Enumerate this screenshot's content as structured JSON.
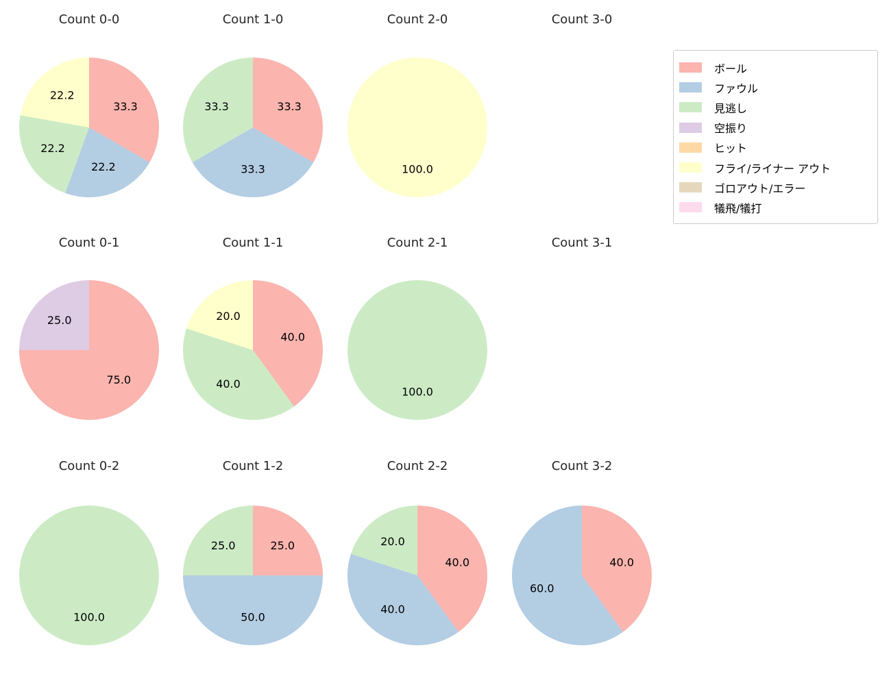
{
  "page": {
    "background": "#ffffff"
  },
  "legend": {
    "items": [
      {
        "label": "ボール",
        "color": "#fbb4ae"
      },
      {
        "label": "ファウル",
        "color": "#b3cde3"
      },
      {
        "label": "見逃し",
        "color": "#ccebc5"
      },
      {
        "label": "空振り",
        "color": "#decbe4"
      },
      {
        "label": "ヒット",
        "color": "#fed9a6"
      },
      {
        "label": "フライ/ライナー アウト",
        "color": "#ffffcc"
      },
      {
        "label": "ゴロアウト/エラー",
        "color": "#e5d8bd"
      },
      {
        "label": "犠飛/犠打",
        "color": "#fddaec"
      }
    ]
  },
  "chart_data": [
    {
      "type": "pie",
      "title": "Count 0-0",
      "start_angle_deg": 0,
      "direction": "clockwise-from-top",
      "slices": [
        {
          "category": "ボール",
          "value": 33.3,
          "label": "33.3"
        },
        {
          "category": "ファウル",
          "value": 22.2,
          "label": "22.2"
        },
        {
          "category": "見逃し",
          "value": 22.2,
          "label": "22.2"
        },
        {
          "category": "フライ/ライナー アウト",
          "value": 22.2,
          "label": "22.2"
        }
      ]
    },
    {
      "type": "pie",
      "title": "Count 1-0",
      "start_angle_deg": 0,
      "direction": "clockwise-from-top",
      "slices": [
        {
          "category": "ボール",
          "value": 33.3,
          "label": "33.3"
        },
        {
          "category": "ファウル",
          "value": 33.3,
          "label": "33.3"
        },
        {
          "category": "見逃し",
          "value": 33.3,
          "label": "33.3"
        }
      ]
    },
    {
      "type": "pie",
      "title": "Count 2-0",
      "start_angle_deg": 0,
      "direction": "clockwise-from-top",
      "slices": [
        {
          "category": "フライ/ライナー アウト",
          "value": 100.0,
          "label": "100.0"
        }
      ]
    },
    {
      "type": "pie",
      "title": "Count 3-0",
      "start_angle_deg": 0,
      "direction": "clockwise-from-top",
      "slices": []
    },
    {
      "type": "pie",
      "title": "Count 0-1",
      "start_angle_deg": 0,
      "direction": "clockwise-from-top",
      "slices": [
        {
          "category": "ボール",
          "value": 75.0,
          "label": "75.0"
        },
        {
          "category": "空振り",
          "value": 25.0,
          "label": "25.0"
        }
      ]
    },
    {
      "type": "pie",
      "title": "Count 1-1",
      "start_angle_deg": 0,
      "direction": "clockwise-from-top",
      "slices": [
        {
          "category": "ボール",
          "value": 40.0,
          "label": "40.0"
        },
        {
          "category": "見逃し",
          "value": 40.0,
          "label": "40.0"
        },
        {
          "category": "フライ/ライナー アウト",
          "value": 20.0,
          "label": "20.0"
        }
      ]
    },
    {
      "type": "pie",
      "title": "Count 2-1",
      "start_angle_deg": 0,
      "direction": "clockwise-from-top",
      "slices": [
        {
          "category": "見逃し",
          "value": 100.0,
          "label": "100.0"
        }
      ]
    },
    {
      "type": "pie",
      "title": "Count 3-1",
      "start_angle_deg": 0,
      "direction": "clockwise-from-top",
      "slices": []
    },
    {
      "type": "pie",
      "title": "Count 0-2",
      "start_angle_deg": 0,
      "direction": "clockwise-from-top",
      "slices": [
        {
          "category": "見逃し",
          "value": 100.0,
          "label": "100.0"
        }
      ]
    },
    {
      "type": "pie",
      "title": "Count 1-2",
      "start_angle_deg": 0,
      "direction": "clockwise-from-top",
      "slices": [
        {
          "category": "ボール",
          "value": 25.0,
          "label": "25.0"
        },
        {
          "category": "ファウル",
          "value": 50.0,
          "label": "50.0"
        },
        {
          "category": "見逃し",
          "value": 25.0,
          "label": "25.0"
        }
      ]
    },
    {
      "type": "pie",
      "title": "Count 2-2",
      "start_angle_deg": 0,
      "direction": "clockwise-from-top",
      "slices": [
        {
          "category": "ボール",
          "value": 40.0,
          "label": "40.0"
        },
        {
          "category": "ファウル",
          "value": 40.0,
          "label": "40.0"
        },
        {
          "category": "見逃し",
          "value": 20.0,
          "label": "20.0"
        }
      ]
    },
    {
      "type": "pie",
      "title": "Count 3-2",
      "start_angle_deg": 0,
      "direction": "clockwise-from-top",
      "slices": [
        {
          "category": "ボール",
          "value": 40.0,
          "label": "40.0"
        },
        {
          "category": "ファウル",
          "value": 60.0,
          "label": "60.0"
        }
      ]
    }
  ]
}
